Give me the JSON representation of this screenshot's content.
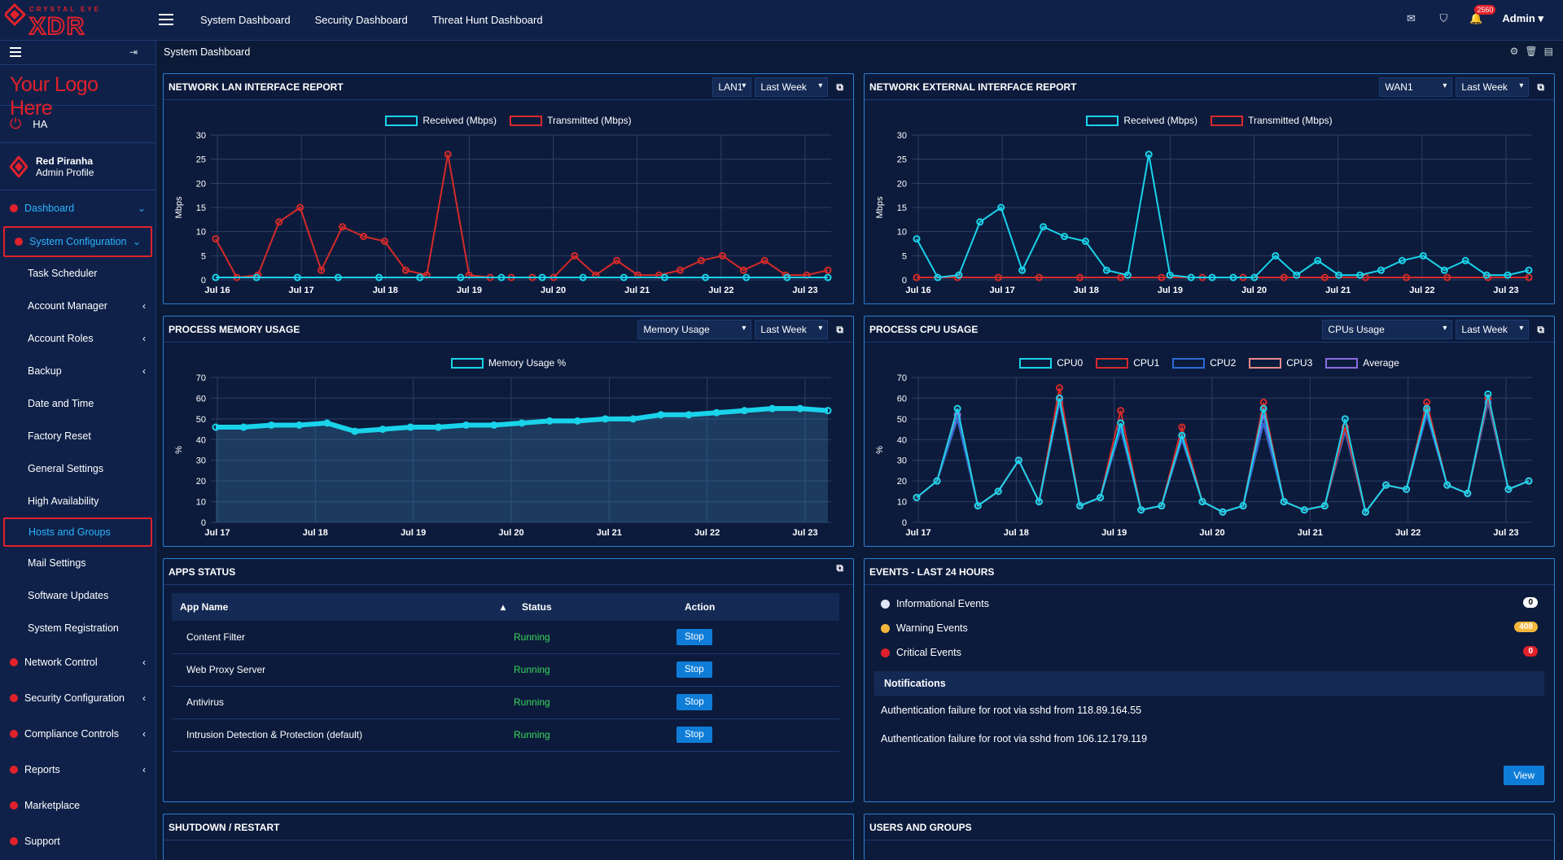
{
  "app": {
    "brand_small": "CRYSTAL EYE",
    "brand_big": "XDR"
  },
  "topnav": [
    "System Dashboard",
    "Security Dashboard",
    "Threat Hunt Dashboard"
  ],
  "topbar": {
    "notifications": "2560",
    "user": "Admin"
  },
  "sidebar": {
    "logo_text": "Your Logo Here",
    "ha": "HA",
    "profile_name": "Red Piranha",
    "profile_sub": "Admin Profile",
    "dashboard": "Dashboard",
    "system_config": "System Configuration",
    "sub_items": [
      "Task Scheduler",
      "Account Manager",
      "Account Roles",
      "Backup",
      "Date and Time",
      "Factory Reset",
      "General Settings",
      "High Availability",
      "Hosts and Groups",
      "Mail Settings",
      "Software Updates",
      "System Registration"
    ],
    "sections": [
      "Network Control",
      "Security Configuration",
      "Compliance Controls",
      "Reports",
      "Marketplace",
      "Support"
    ]
  },
  "breadcrumb": "System Dashboard",
  "panels": {
    "lan": {
      "title": "NETWORK LAN INTERFACE REPORT",
      "iface": "LAN1",
      "range": "Last Week",
      "leg1": "Received (Mbps)",
      "leg2": "Transmitted (Mbps)",
      "ylabel": "Mbps"
    },
    "wan": {
      "title": "NETWORK EXTERNAL INTERFACE REPORT",
      "iface": "WAN1",
      "range": "Last Week",
      "leg1": "Received (Mbps)",
      "leg2": "Transmitted (Mbps)",
      "ylabel": "Mbps"
    },
    "mem": {
      "title": "PROCESS MEMORY USAGE",
      "metric": "Memory Usage",
      "range": "Last Week",
      "leg1": "Memory Usage %",
      "ylabel": "%"
    },
    "cpu": {
      "title": "PROCESS CPU USAGE",
      "metric": "CPUs Usage",
      "range": "Last Week",
      "legend": [
        "CPU0",
        "CPU1",
        "CPU2",
        "CPU3",
        "Average"
      ],
      "ylabel": "%"
    },
    "apps": {
      "title": "APPS STATUS",
      "cols": [
        "App Name",
        "Status",
        "Action"
      ],
      "rows": [
        {
          "name": "Content Filter",
          "status": "Running",
          "action": "Stop"
        },
        {
          "name": "Web Proxy Server",
          "status": "Running",
          "action": "Stop"
        },
        {
          "name": "Antivirus",
          "status": "Running",
          "action": "Stop"
        },
        {
          "name": "Intrusion Detection & Protection (default)",
          "status": "Running",
          "action": "Stop"
        }
      ]
    },
    "events": {
      "title": "EVENTS - LAST 24 HOURS",
      "items": [
        {
          "label": "Informational Events",
          "count": "0"
        },
        {
          "label": "Warning Events",
          "count": "408"
        },
        {
          "label": "Critical Events",
          "count": "0"
        }
      ],
      "notif_title": "Notifications",
      "notifs": [
        "Authentication failure for root via sshd from 118.89.164.55",
        "Authentication failure for root via sshd from 106.12.179.119"
      ],
      "view": "View"
    },
    "shutdown": {
      "title": "SHUTDOWN / RESTART"
    },
    "users": {
      "title": "USERS AND GROUPS"
    }
  },
  "chart_data": [
    {
      "type": "line",
      "title": "NETWORK LAN INTERFACE REPORT",
      "ylabel": "Mbps",
      "ylim": [
        0,
        30
      ],
      "yticks": [
        0,
        5,
        10,
        15,
        20,
        25,
        30
      ],
      "x_ticks": [
        "Jul 16",
        "Jul 17",
        "Jul 18",
        "Jul 19",
        "Jul 20",
        "Jul 21",
        "Jul 22",
        "Jul 23"
      ],
      "series": [
        {
          "name": "Received (Mbps)",
          "color": "#19d3ea",
          "values": [
            0.5,
            0.5,
            0.5,
            0.5,
            0.5,
            0.5,
            0.5,
            0.5,
            0.5,
            0.5,
            0.5,
            0.5,
            0.5,
            0.5,
            0.5,
            0.5
          ]
        },
        {
          "name": "Transmitted (Mbps)",
          "color": "#d62a2a",
          "values": [
            8.5,
            0.5,
            1,
            12,
            15,
            2,
            11,
            9,
            8,
            2,
            1,
            26,
            1,
            0.5,
            0.5,
            0.5,
            0.5,
            5,
            1,
            4,
            1,
            1,
            2,
            4,
            5,
            2,
            4,
            1,
            1,
            2
          ]
        }
      ]
    },
    {
      "type": "line",
      "title": "NETWORK EXTERNAL INTERFACE REPORT",
      "ylabel": "Mbps",
      "ylim": [
        0,
        30
      ],
      "yticks": [
        0,
        5,
        10,
        15,
        20,
        25,
        30
      ],
      "x_ticks": [
        "Jul 16",
        "Jul 17",
        "Jul 18",
        "Jul 19",
        "Jul 20",
        "Jul 21",
        "Jul 22",
        "Jul 23"
      ],
      "series": [
        {
          "name": "Received (Mbps)",
          "color": "#19d3ea",
          "values": [
            8.5,
            0.5,
            1,
            12,
            15,
            2,
            11,
            9,
            8,
            2,
            1,
            26,
            1,
            0.5,
            0.5,
            0.5,
            0.5,
            5,
            1,
            4,
            1,
            1,
            2,
            4,
            5,
            2,
            4,
            1,
            1,
            2
          ]
        },
        {
          "name": "Transmitted (Mbps)",
          "color": "#d62a2a",
          "values": [
            0.5,
            0.5,
            0.5,
            0.5,
            0.5,
            0.5,
            0.5,
            0.5,
            0.5,
            0.5,
            0.5,
            0.5,
            0.5,
            0.5,
            0.5,
            0.5
          ]
        }
      ]
    },
    {
      "type": "area",
      "title": "PROCESS MEMORY USAGE",
      "ylabel": "%",
      "ylim": [
        0,
        70
      ],
      "yticks": [
        0,
        10,
        20,
        30,
        40,
        50,
        60,
        70
      ],
      "x_ticks": [
        "Jul 17",
        "Jul 18",
        "Jul 19",
        "Jul 20",
        "Jul 21",
        "Jul 22",
        "Jul 23"
      ],
      "series": [
        {
          "name": "Memory Usage %",
          "color": "#19d3ea",
          "values": [
            46,
            46,
            47,
            47,
            48,
            44,
            45,
            46,
            46,
            47,
            47,
            48,
            49,
            49,
            50,
            50,
            52,
            52,
            53,
            54,
            55,
            55,
            54
          ]
        }
      ]
    },
    {
      "type": "line",
      "title": "PROCESS CPU USAGE",
      "ylabel": "%",
      "ylim": [
        0,
        70
      ],
      "yticks": [
        0,
        10,
        20,
        30,
        40,
        50,
        60,
        70
      ],
      "x_ticks": [
        "Jul 17",
        "Jul 18",
        "Jul 19",
        "Jul 20",
        "Jul 21",
        "Jul 22",
        "Jul 23"
      ],
      "series": [
        {
          "name": "CPU0",
          "color": "#19d3ea",
          "values": [
            12,
            20,
            55,
            8,
            15,
            30,
            10,
            60,
            8,
            12,
            48,
            6,
            8,
            42,
            10,
            5,
            8,
            55,
            10,
            6,
            8,
            50,
            5,
            18,
            16,
            55,
            18,
            14,
            62,
            16,
            20
          ]
        },
        {
          "name": "CPU1",
          "color": "#d62a2a",
          "values": [
            12,
            20,
            55,
            8,
            15,
            30,
            10,
            65,
            8,
            12,
            54,
            6,
            8,
            46,
            10,
            5,
            8,
            58,
            10,
            6,
            8,
            46,
            5,
            18,
            16,
            58,
            18,
            14,
            60,
            16,
            20
          ]
        },
        {
          "name": "CPU2",
          "color": "#2b6bd6",
          "values": [
            12,
            20,
            50,
            8,
            15,
            30,
            10,
            58,
            8,
            12,
            45,
            6,
            8,
            40,
            10,
            5,
            8,
            48,
            10,
            6,
            8,
            44,
            5,
            18,
            16,
            52,
            18,
            14,
            58,
            16,
            20
          ]
        },
        {
          "name": "CPU3",
          "color": "#e98b8b",
          "values": [
            12,
            20,
            50,
            8,
            15,
            30,
            10,
            58,
            8,
            12,
            45,
            6,
            8,
            40,
            10,
            5,
            8,
            48,
            10,
            6,
            8,
            44,
            5,
            18,
            16,
            52,
            18,
            14,
            58,
            16,
            20
          ]
        },
        {
          "name": "Average",
          "color": "#8a6be0",
          "values": [
            12,
            20,
            52,
            8,
            15,
            30,
            10,
            60,
            8,
            12,
            48,
            6,
            8,
            42,
            10,
            5,
            8,
            52,
            10,
            6,
            8,
            46,
            5,
            18,
            16,
            54,
            18,
            14,
            60,
            16,
            20
          ]
        }
      ]
    }
  ]
}
